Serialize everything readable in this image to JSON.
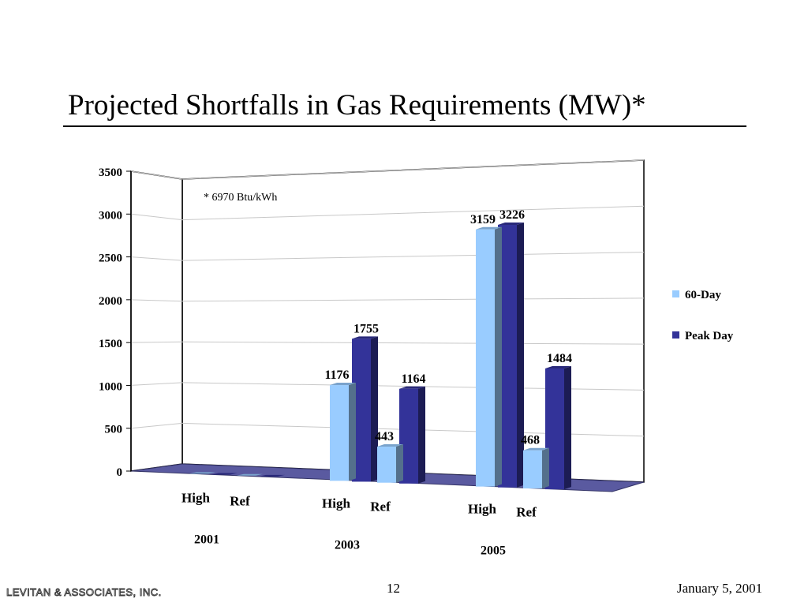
{
  "slide": {
    "title": "Projected Shortfalls in Gas Requirements (MW)*",
    "page_number": "12",
    "date": "January 5, 2001",
    "logo_text": "LEVITAN & ASSOCIATES, INC."
  },
  "chart_data": {
    "type": "bar",
    "annotation": "* 6970 Btu/kWh",
    "years": [
      "2001",
      "2003",
      "2005"
    ],
    "cases": [
      "High",
      "Ref"
    ],
    "categories": [
      "High 2001",
      "Ref 2001",
      "High 2003",
      "Ref 2003",
      "High 2005",
      "Ref 2005"
    ],
    "series": [
      {
        "name": "60-Day",
        "color": "#99ccff",
        "values": [
          0,
          0,
          1176,
          443,
          3159,
          468
        ]
      },
      {
        "name": "Peak Day",
        "color": "#333399",
        "values": [
          0,
          0,
          1755,
          1164,
          3226,
          1484
        ]
      }
    ],
    "ylim": [
      0,
      3500
    ],
    "yticks": [
      "0",
      "500",
      "1000",
      "1500",
      "2000",
      "2500",
      "3000",
      "3500"
    ],
    "grid": true,
    "legend_position": "right"
  }
}
